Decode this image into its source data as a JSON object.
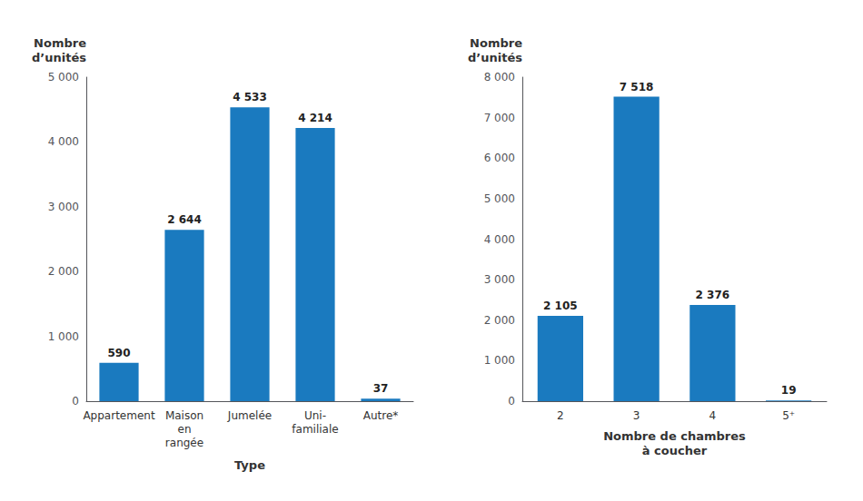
{
  "chart_data": [
    {
      "type": "bar",
      "categories": [
        "Appartement",
        "Maison\nen\nrangée",
        "Jumelée",
        "Uni-\nfamiliale",
        "Autre*"
      ],
      "values": [
        590,
        2644,
        4533,
        4214,
        37
      ],
      "value_labels": [
        "590",
        "2 644",
        "4 533",
        "4 214",
        "37"
      ],
      "data_labels": true,
      "color": "#1a7abf",
      "ylabel": "Nombre\nd’unités",
      "xlabel": "Type",
      "ylim": [
        0,
        5000
      ],
      "yticks": [
        0,
        {
          "value": 1000,
          "label": "1 000"
        },
        {
          "value": 2000,
          "label": "2 000"
        },
        {
          "value": 3000,
          "label": "3 000"
        },
        {
          "value": 4000,
          "label": "4 000"
        },
        {
          "value": 5000,
          "label": "5 000"
        }
      ],
      "grid": false
    },
    {
      "type": "bar",
      "categories": [
        "2",
        "3",
        "4",
        "5⁺"
      ],
      "values": [
        2105,
        7518,
        2376,
        19
      ],
      "value_labels": [
        "2 105",
        "7 518",
        "2 376",
        "19"
      ],
      "data_labels": true,
      "color": "#1a7abf",
      "ylabel": "Nombre\nd’unités",
      "xlabel": "Nombre de chambres\nà coucher",
      "ylim": [
        0,
        8000
      ],
      "yticks": [
        0,
        {
          "value": 1000,
          "label": "1 000"
        },
        {
          "value": 2000,
          "label": "2 000"
        },
        {
          "value": 3000,
          "label": "3 000"
        },
        {
          "value": 4000,
          "label": "4 000"
        },
        {
          "value": 5000,
          "label": "5 000"
        },
        {
          "value": 6000,
          "label": "6 000"
        },
        {
          "value": 7000,
          "label": "7 000"
        },
        {
          "value": 8000,
          "label": "8 000"
        }
      ],
      "grid": false
    }
  ]
}
